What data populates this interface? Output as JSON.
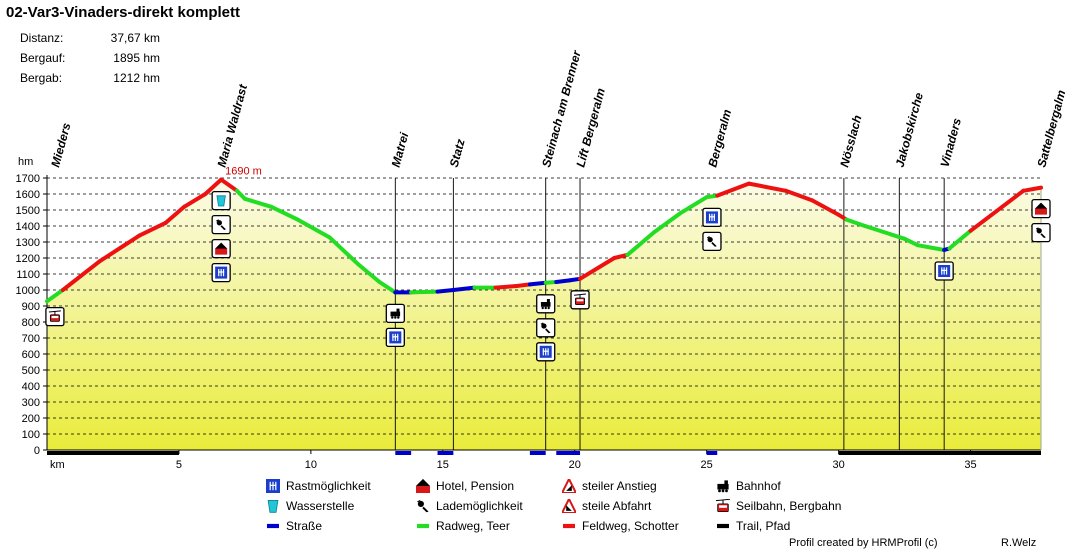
{
  "header": {
    "title": "02-Var3-Vinaders-direkt komplett",
    "stats": [
      {
        "label": "Distanz:",
        "value": "37,67 km"
      },
      {
        "label": "Bergauf:",
        "value": "1895 hm"
      },
      {
        "label": "Bergab:",
        "value": "1212 hm"
      }
    ]
  },
  "chart_data": {
    "type": "line",
    "title": "02-Var3-Vinaders-direkt komplett",
    "xlabel": "km",
    "ylabel": "hm",
    "xlim": [
      0,
      37.67
    ],
    "ylim": [
      0,
      1700
    ],
    "x_ticks": [
      5,
      10,
      15,
      20,
      25,
      30,
      35
    ],
    "y_ticks": [
      0,
      100,
      200,
      300,
      400,
      500,
      600,
      700,
      800,
      900,
      1000,
      1100,
      1200,
      1300,
      1400,
      1500,
      1600,
      1700
    ],
    "grid": true,
    "max_label": "1690 m",
    "max_point": {
      "x": 6.6,
      "y": 1690
    },
    "surface_colors": {
      "Straße": "#0000cc",
      "Radweg, Teer": "#22dd22",
      "Feldweg, Schotter": "#ee1111",
      "Trail, Pfad": "#000000"
    },
    "profile": [
      {
        "x": 0.0,
        "y": 930,
        "surface": "Radweg, Teer"
      },
      {
        "x": 0.6,
        "y": 1000,
        "surface": "Feldweg, Schotter"
      },
      {
        "x": 2.0,
        "y": 1180,
        "surface": "Feldweg, Schotter"
      },
      {
        "x": 3.5,
        "y": 1340,
        "surface": "Feldweg, Schotter"
      },
      {
        "x": 4.5,
        "y": 1420,
        "surface": "Feldweg, Schotter"
      },
      {
        "x": 5.2,
        "y": 1520,
        "surface": "Feldweg, Schotter"
      },
      {
        "x": 6.0,
        "y": 1600,
        "surface": "Feldweg, Schotter"
      },
      {
        "x": 6.6,
        "y": 1690,
        "surface": "Feldweg, Schotter"
      },
      {
        "x": 7.2,
        "y": 1620,
        "surface": "Radweg, Teer"
      },
      {
        "x": 7.5,
        "y": 1570,
        "surface": "Radweg, Teer"
      },
      {
        "x": 8.5,
        "y": 1520,
        "surface": "Radweg, Teer"
      },
      {
        "x": 9.5,
        "y": 1440,
        "surface": "Radweg, Teer"
      },
      {
        "x": 10.7,
        "y": 1330,
        "surface": "Radweg, Teer"
      },
      {
        "x": 11.8,
        "y": 1160,
        "surface": "Radweg, Teer"
      },
      {
        "x": 12.6,
        "y": 1050,
        "surface": "Radweg, Teer"
      },
      {
        "x": 13.2,
        "y": 985,
        "surface": "Straße"
      },
      {
        "x": 13.8,
        "y": 985,
        "surface": "Radweg, Teer"
      },
      {
        "x": 14.8,
        "y": 990,
        "surface": "Straße"
      },
      {
        "x": 15.4,
        "y": 1000,
        "surface": "Straße"
      },
      {
        "x": 16.2,
        "y": 1015,
        "surface": "Radweg, Teer"
      },
      {
        "x": 17.0,
        "y": 1015,
        "surface": "Feldweg, Schotter"
      },
      {
        "x": 17.8,
        "y": 1025,
        "surface": "Feldweg, Schotter"
      },
      {
        "x": 18.3,
        "y": 1035,
        "surface": "Straße"
      },
      {
        "x": 18.9,
        "y": 1045,
        "surface": "Radweg, Teer"
      },
      {
        "x": 19.3,
        "y": 1050,
        "surface": "Straße"
      },
      {
        "x": 19.8,
        "y": 1060,
        "surface": "Straße"
      },
      {
        "x": 20.2,
        "y": 1070,
        "surface": "Feldweg, Schotter"
      },
      {
        "x": 21.5,
        "y": 1200,
        "surface": "Feldweg, Schotter"
      },
      {
        "x": 22.0,
        "y": 1220,
        "surface": "Radweg, Teer"
      },
      {
        "x": 23.0,
        "y": 1360,
        "surface": "Radweg, Teer"
      },
      {
        "x": 24.0,
        "y": 1480,
        "surface": "Radweg, Teer"
      },
      {
        "x": 25.0,
        "y": 1580,
        "surface": "Radweg, Teer"
      },
      {
        "x": 25.4,
        "y": 1590,
        "surface": "Feldweg, Schotter"
      },
      {
        "x": 26.6,
        "y": 1665,
        "surface": "Feldweg, Schotter"
      },
      {
        "x": 28.0,
        "y": 1620,
        "surface": "Feldweg, Schotter"
      },
      {
        "x": 29.0,
        "y": 1560,
        "surface": "Feldweg, Schotter"
      },
      {
        "x": 30.0,
        "y": 1470,
        "surface": "Feldweg, Schotter"
      },
      {
        "x": 30.3,
        "y": 1440,
        "surface": "Radweg, Teer"
      },
      {
        "x": 31.0,
        "y": 1400,
        "surface": "Radweg, Teer"
      },
      {
        "x": 32.5,
        "y": 1320,
        "surface": "Radweg, Teer"
      },
      {
        "x": 33.0,
        "y": 1280,
        "surface": "Radweg, Teer"
      },
      {
        "x": 34.0,
        "y": 1250,
        "surface": "Straße"
      },
      {
        "x": 34.2,
        "y": 1260,
        "surface": "Radweg, Teer"
      },
      {
        "x": 35.0,
        "y": 1370,
        "surface": "Feldweg, Schotter"
      },
      {
        "x": 36.2,
        "y": 1520,
        "surface": "Feldweg, Schotter"
      },
      {
        "x": 37.0,
        "y": 1620,
        "surface": "Feldweg, Schotter"
      },
      {
        "x": 37.67,
        "y": 1640,
        "surface": "Feldweg, Schotter"
      }
    ],
    "bottom_bar": [
      {
        "from": 0.0,
        "to": 5.0,
        "surface": "Trail, Pfad"
      },
      {
        "from": 13.2,
        "to": 13.8,
        "surface": "Straße"
      },
      {
        "from": 14.8,
        "to": 15.4,
        "surface": "Straße"
      },
      {
        "from": 18.3,
        "to": 18.9,
        "surface": "Straße"
      },
      {
        "from": 19.3,
        "to": 20.2,
        "surface": "Straße"
      },
      {
        "from": 25.0,
        "to": 25.4,
        "surface": "Straße"
      },
      {
        "from": 30.0,
        "to": 37.67,
        "surface": "Trail, Pfad"
      }
    ],
    "waypoints": [
      {
        "name": "Mieders",
        "km": 0.3,
        "line": false,
        "icons": [
          "seilbahn"
        ],
        "icon_side": "below"
      },
      {
        "name": "Maria Waldrast",
        "km": 6.6,
        "line": false,
        "icons": [
          "wasser",
          "lade",
          "hotel",
          "rast"
        ],
        "icon_side": "below"
      },
      {
        "name": "Matrei",
        "km": 13.2,
        "line": true,
        "icons": [
          "bahnhof",
          "rast"
        ],
        "icon_side": "below"
      },
      {
        "name": "Statz",
        "km": 15.4,
        "line": true,
        "icons": [],
        "icon_side": "below"
      },
      {
        "name": "Steinach am Brenner",
        "km": 18.9,
        "line": true,
        "icons": [
          "bahnhof",
          "lade",
          "rast"
        ],
        "icon_side": "below"
      },
      {
        "name": "Lift Bergeralm",
        "km": 20.2,
        "line": true,
        "icons": [
          "seilbahn"
        ],
        "icon_side": "below"
      },
      {
        "name": "Bergeralm",
        "km": 25.2,
        "line": false,
        "icons": [
          "rast",
          "lade"
        ],
        "icon_side": "below"
      },
      {
        "name": "Nösslach",
        "km": 30.2,
        "line": true,
        "icons": [],
        "icon_side": "below"
      },
      {
        "name": "Jakobskirche",
        "km": 32.3,
        "line": true,
        "icons": [],
        "icon_side": "below"
      },
      {
        "name": "Vinaders",
        "km": 34.0,
        "line": true,
        "icons": [
          "rast"
        ],
        "icon_side": "below"
      },
      {
        "name": "Sattelbergalm",
        "km": 37.67,
        "line": false,
        "icons": [
          "hotel",
          "lade"
        ],
        "icon_side": "below"
      }
    ]
  },
  "legend": {
    "items": [
      {
        "label": "Rastmöglichkeit",
        "icon": "rast"
      },
      {
        "label": "Hotel, Pension",
        "icon": "hotel"
      },
      {
        "label": "steiler Anstieg",
        "icon": "anstieg"
      },
      {
        "label": "Bahnhof",
        "icon": "bahnhof"
      },
      {
        "label": "Wasserstelle",
        "icon": "wasser"
      },
      {
        "label": "Lademöglichkeit",
        "icon": "lade"
      },
      {
        "label": "steile Abfahrt",
        "icon": "abfahrt"
      },
      {
        "label": "Seilbahn, Bergbahn",
        "icon": "seilbahn"
      },
      {
        "label": "Straße",
        "icon": "strasse"
      },
      {
        "label": "Radweg, Teer",
        "icon": "radweg"
      },
      {
        "label": "Feldweg, Schotter",
        "icon": "feldweg"
      },
      {
        "label": "Trail, Pfad",
        "icon": "trail"
      }
    ]
  },
  "footer": {
    "credit": "Profil created by HRMProfil (c)",
    "author": "R.Welz"
  }
}
